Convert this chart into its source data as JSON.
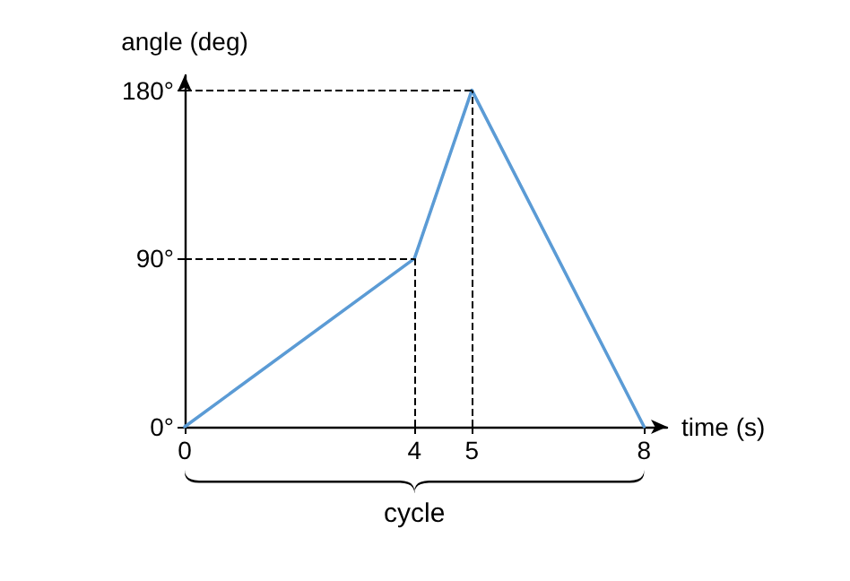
{
  "chart_data": {
    "type": "line",
    "xlabel": "time (s)",
    "ylabel": "angle (deg)",
    "x": [
      0,
      4,
      5,
      8
    ],
    "series": [
      {
        "color": "#5b9bd5",
        "values": [
          0,
          90,
          180,
          0
        ]
      }
    ],
    "xlim": [
      0,
      8.4
    ],
    "xticks": [
      0,
      4,
      5,
      8
    ],
    "ylim": [
      0,
      188
    ],
    "yticks": [
      {
        "value": 0,
        "label": "0°"
      },
      {
        "value": 90,
        "label": "90°"
      },
      {
        "value": 180,
        "label": "180°"
      }
    ],
    "ref_lines": [
      {
        "axis": "y",
        "value": 90,
        "line_style": "dashed",
        "color": "#000000"
      },
      {
        "axis": "y",
        "value": 180,
        "line_style": "dashed",
        "color": "#000000"
      },
      {
        "axis": "x",
        "value": 4,
        "line_style": "dashed",
        "color": "#000000"
      },
      {
        "axis": "x",
        "value": 5,
        "line_style": "dashed",
        "color": "#000000"
      }
    ],
    "annotations": [
      "cycle"
    ],
    "marker": "none",
    "line_style": "solid",
    "grid": false
  }
}
